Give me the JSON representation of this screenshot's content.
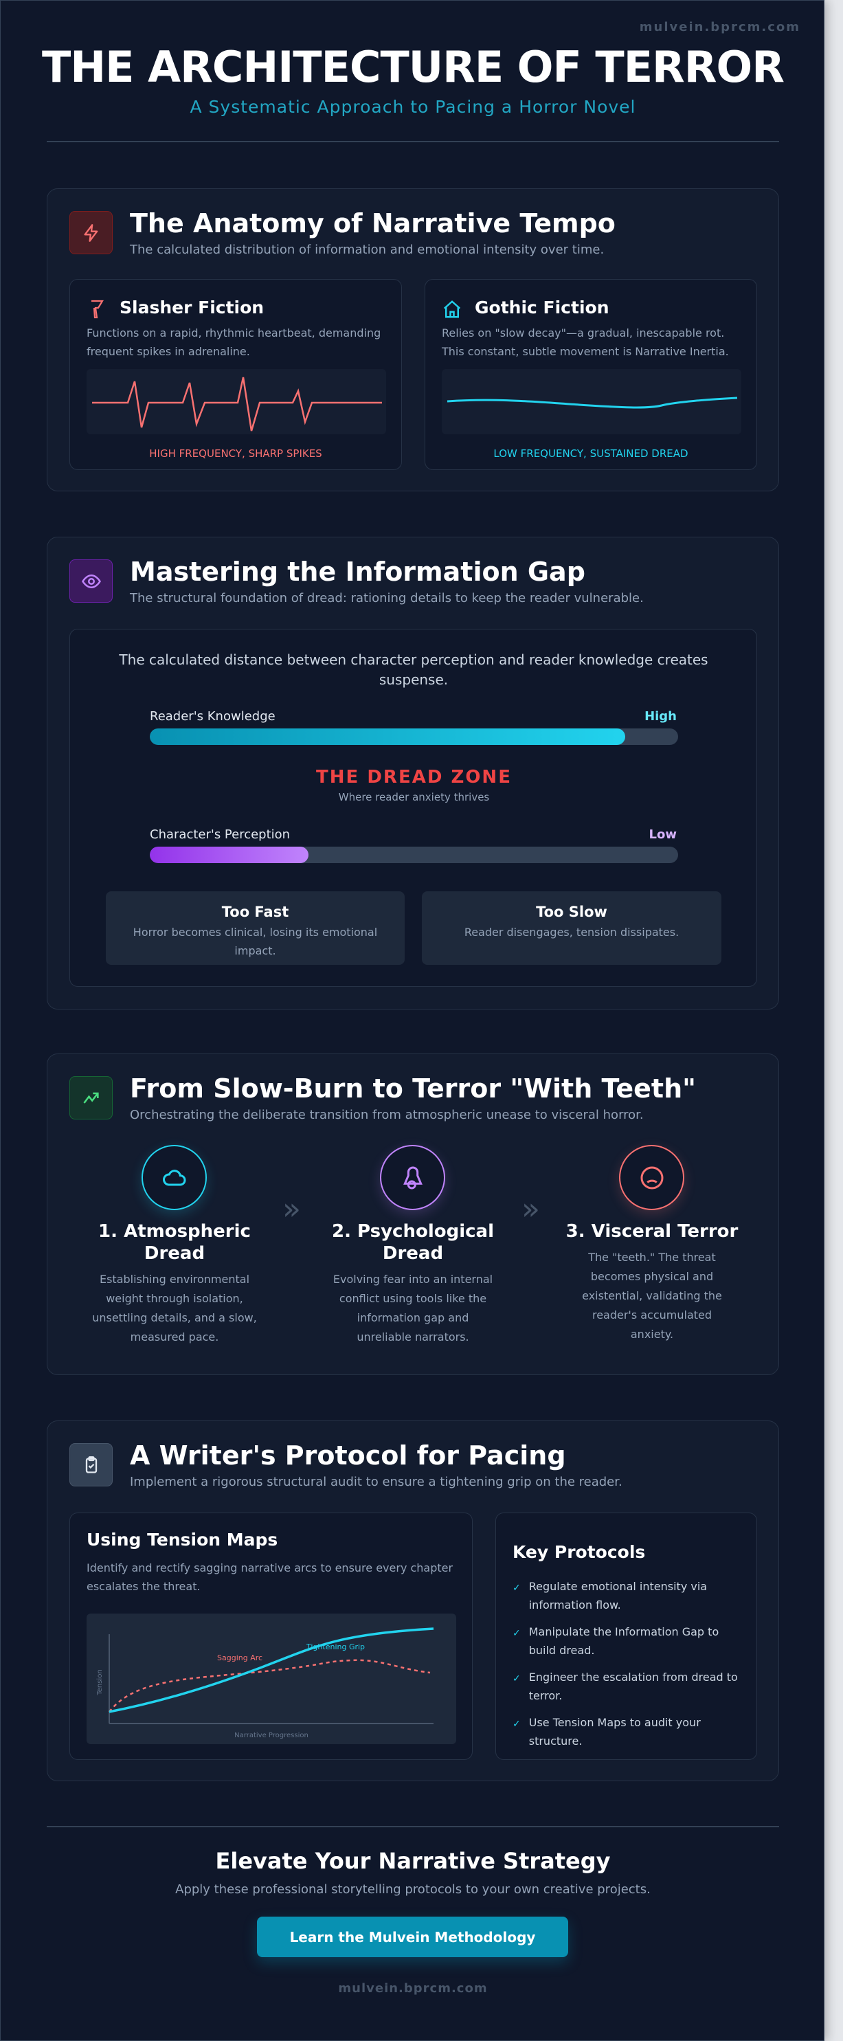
{
  "watermark": "mulvein.bprcm.com",
  "header": {
    "title": "THE ARCHITECTURE OF TERROR",
    "subtitle": "A Systematic Approach to Pacing a Horror Novel"
  },
  "tempo": {
    "icon": "bolt-icon",
    "title": "The Anatomy of Narrative Tempo",
    "subtitle": "The calculated distribution of information and emotional intensity over time.",
    "slasher": {
      "icon": "knife-icon",
      "title": "Slasher Fiction",
      "text": "Functions on a rapid, rhythmic heartbeat, demanding frequent spikes in adrenaline.",
      "label": "HIGH FREQUENCY, SHARP SPIKES",
      "color": "#f87171"
    },
    "gothic": {
      "icon": "house-icon",
      "title": "Gothic Fiction",
      "text": "Relies on \"slow decay\"—a gradual, inescapable rot. This constant, subtle movement is Narrative Inertia.",
      "label": "LOW FREQUENCY, SUSTAINED DREAD",
      "color": "#22d3ee"
    }
  },
  "gap": {
    "icon": "eye-icon",
    "title": "Mastering the Information Gap",
    "subtitle": "The structural foundation of dread: rationing details to keep the reader vulnerable.",
    "intro": "The calculated distance between character perception and reader knowledge creates suspense.",
    "reader": {
      "label": "Reader's Knowledge",
      "level": "High",
      "percent": 90
    },
    "zone": {
      "title": "THE DREAD ZONE",
      "caption": "Where reader anxiety thrives"
    },
    "character": {
      "label": "Character's Perception",
      "level": "Low",
      "percent": 30
    },
    "fast": {
      "title": "Too Fast",
      "text": "Horror becomes clinical, losing its emotional impact."
    },
    "slow": {
      "title": "Too Slow",
      "text": "Reader disengages, tension dissipates."
    }
  },
  "burn": {
    "icon": "trending-up-icon",
    "title": "From Slow-Burn to Terror \"With Teeth\"",
    "subtitle": "Orchestrating the deliberate transition from atmospheric unease to visceral horror.",
    "stages": [
      {
        "icon": "cloud-icon",
        "title": "1. Atmospheric Dread",
        "text": "Establishing environmental weight through isolation, unsettling details, and a slow, measured pace.",
        "color": "#22d3ee"
      },
      {
        "icon": "brain-icon",
        "title": "2. Psychological Dread",
        "text": "Evolving fear into an internal conflict using tools like the information gap and unreliable narrators.",
        "color": "#c084fc"
      },
      {
        "icon": "frown-icon",
        "title": "3. Visceral Terror",
        "text": "The \"teeth.\" The threat becomes physical and existential, validating the reader's accumulated anxiety.",
        "color": "#f87171"
      }
    ]
  },
  "protocol": {
    "icon": "clipboard-check-icon",
    "title": "A Writer's Protocol for Pacing",
    "subtitle": "Implement a rigorous structural audit to ensure a tightening grip on the reader.",
    "maps": {
      "title": "Using Tension Maps",
      "text": "Identify and rectify sagging narrative arcs to ensure every chapter escalates the threat.",
      "chart": {
        "ylabel": "Tension",
        "xlabel": "Narrative Progression",
        "sag_label": "Sagging Arc",
        "grip_label": "Tightening Grip"
      }
    },
    "key": {
      "title": "Key Protocols",
      "items": [
        "Regulate emotional intensity via information flow.",
        "Manipulate the Information Gap to build dread.",
        "Engineer the escalation from dread to terror.",
        "Use Tension Maps to audit your structure."
      ]
    }
  },
  "footer": {
    "title": "Elevate Your Narrative Strategy",
    "text": "Apply these professional storytelling protocols to your own creative projects.",
    "button": "Learn the Mulvein Methodology",
    "url": "mulvein.bprcm.com"
  }
}
